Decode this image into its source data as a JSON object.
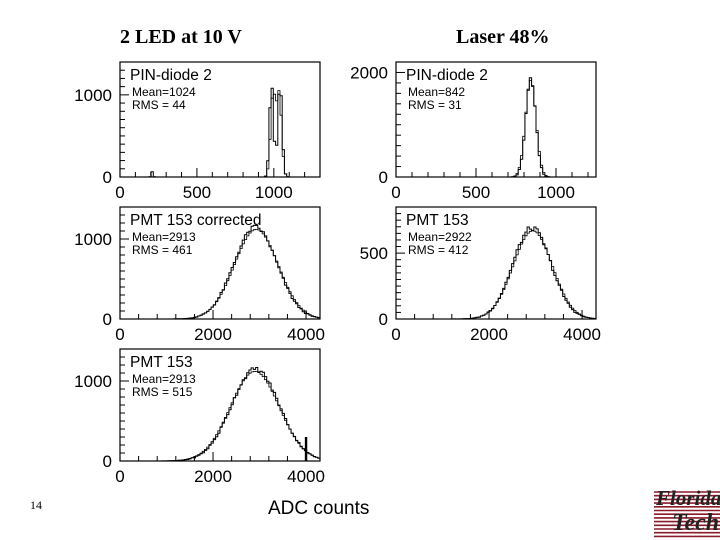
{
  "titles": {
    "left": "2 LED at 10 V",
    "right": "Laser 48%"
  },
  "slide_number": "14",
  "x_axis_label": "ADC counts",
  "logo": {
    "line1": "Florida",
    "line2": "Tech",
    "stripe_color": "#8b1a2b"
  },
  "chart_data": [
    {
      "type": "histogram",
      "panel": "top-left",
      "title": "PIN-diode 2",
      "stats": [
        "Mean=1024",
        "RMS = 44"
      ],
      "xlim": [
        0,
        1300
      ],
      "ylim": [
        0,
        1400
      ],
      "xticks": [
        0,
        500,
        1000
      ],
      "xticklabels": [
        "0",
        "500",
        "1000"
      ],
      "yticks": [
        0,
        1000
      ],
      "yticklabels": [
        "0",
        "1000"
      ],
      "series": [
        {
          "components": [
            {
              "amp": 1150,
              "mean": 985,
              "sigma": 13
            },
            {
              "amp": 1150,
              "mean": 1040,
              "sigma": 14
            },
            {
              "amp": 60,
              "mean": 210,
              "sigma": 6
            }
          ]
        },
        {
          "components": [
            {
              "amp": 1000,
              "mean": 995,
              "sigma": 16
            },
            {
              "amp": 1000,
              "mean": 1035,
              "sigma": 16
            }
          ]
        }
      ]
    },
    {
      "type": "histogram",
      "panel": "top-right",
      "title": "PIN-diode 2",
      "stats": [
        "Mean=842",
        "RMS = 31"
      ],
      "xlim": [
        0,
        1250
      ],
      "ylim": [
        0,
        2200
      ],
      "xticks": [
        0,
        500,
        1000
      ],
      "xticklabels": [
        "0",
        "500",
        "1000"
      ],
      "yticks": [
        0,
        2000
      ],
      "yticklabels": [
        "0",
        "2000"
      ],
      "series": [
        {
          "components": [
            {
              "amp": 1900,
              "mean": 842,
              "sigma": 31
            }
          ]
        },
        {
          "components": [
            {
              "amp": 1850,
              "mean": 842,
              "sigma": 33
            }
          ]
        }
      ]
    },
    {
      "type": "histogram",
      "panel": "middle-left",
      "title": "PMT 153  corrected",
      "stats": [
        "Mean=2913",
        "RMS = 461"
      ],
      "xlim": [
        0,
        4300
      ],
      "ylim": [
        0,
        1400
      ],
      "xticks": [
        0,
        2000,
        4000
      ],
      "xticklabels": [
        "0",
        "2000",
        "4000"
      ],
      "yticks": [
        0,
        1000
      ],
      "yticklabels": [
        "0",
        "1000"
      ],
      "series": [
        {
          "components": [
            {
              "amp": 1150,
              "mean": 2913,
              "sigma": 461
            }
          ]
        },
        {
          "components": [
            {
              "amp": 1120,
              "mean": 2930,
              "sigma": 470
            }
          ]
        }
      ]
    },
    {
      "type": "histogram",
      "panel": "middle-right",
      "title": "PMT 153",
      "stats": [
        "Mean=2922",
        "RMS = 412"
      ],
      "xlim": [
        0,
        4300
      ],
      "ylim": [
        0,
        850
      ],
      "xticks": [
        0,
        2000,
        4000
      ],
      "xticklabels": [
        "0",
        "2000",
        "4000"
      ],
      "yticks": [
        0,
        500
      ],
      "yticklabels": [
        "0",
        "500"
      ],
      "series": [
        {
          "components": [
            {
              "amp": 690,
              "mean": 2922,
              "sigma": 412
            }
          ]
        },
        {
          "components": [
            {
              "amp": 670,
              "mean": 2940,
              "sigma": 420
            }
          ]
        }
      ]
    },
    {
      "type": "histogram",
      "panel": "bottom-left",
      "title": "PMT 153",
      "stats": [
        "Mean=2913",
        "RMS = 515"
      ],
      "xlim": [
        0,
        4300
      ],
      "ylim": [
        0,
        1400
      ],
      "xticks": [
        0,
        2000,
        4000
      ],
      "xticklabels": [
        "0",
        "2000",
        "4000"
      ],
      "yticks": [
        0,
        1000
      ],
      "yticklabels": [
        "0",
        "1000"
      ],
      "spike": {
        "x": 4000,
        "y": 300
      },
      "series": [
        {
          "components": [
            {
              "amp": 1150,
              "mean": 2913,
              "sigma": 515
            }
          ]
        },
        {
          "components": [
            {
              "amp": 1120,
              "mean": 2900,
              "sigma": 525
            }
          ]
        }
      ]
    }
  ]
}
